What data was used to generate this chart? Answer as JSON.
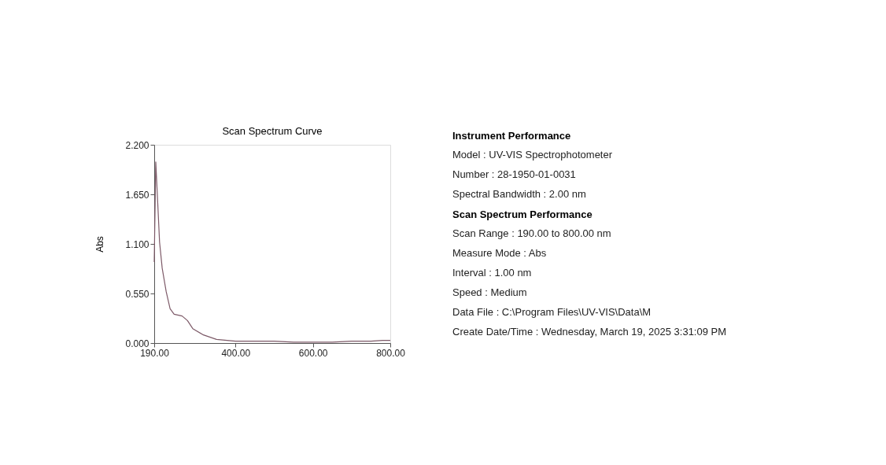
{
  "chart_data": [
    {
      "type": "line",
      "title": "Scan Spectrum Curve",
      "ylabel": "Abs",
      "series": [
        {
          "color": "#7d5a68",
          "x": [
            190,
            194,
            199,
            203.8,
            210.6,
            220.9,
            231,
            241.4,
            262,
            275.8,
            289.6,
            317,
            351,
            400,
            450,
            500,
            550,
            600,
            650,
            700,
            750,
            780,
            800
          ],
          "values": [
            0.9,
            2.01,
            1.56,
            1.12,
            0.83,
            0.57,
            0.38,
            0.32,
            0.3,
            0.25,
            0.16,
            0.09,
            0.04,
            0.02,
            0.02,
            0.02,
            0.01,
            0.01,
            0.01,
            0.02,
            0.02,
            0.03,
            0.03
          ]
        }
      ],
      "xlim": [
        190,
        800
      ],
      "xticks": [
        {
          "value": 190,
          "label": "190.00"
        },
        {
          "value": 400,
          "label": "400.00"
        },
        {
          "value": 600,
          "label": "600.00"
        },
        {
          "value": 800,
          "label": "800.00"
        }
      ],
      "ylim": [
        0,
        2.2
      ],
      "yticks": [
        {
          "value": 0,
          "label": "0.000"
        },
        {
          "value": 0.55,
          "label": "0.550"
        },
        {
          "value": 1.1,
          "label": "1.100"
        },
        {
          "value": 1.65,
          "label": "1.650"
        },
        {
          "value": 2.2,
          "label": "2.200"
        }
      ],
      "grid": false,
      "line_style": "solid",
      "marker": "none"
    },
    {
      "type": "other",
      "title": "Instrument Performance",
      "annotations": [
        "Model : UV-VIS Spectrophotometer",
        "Number : 28-1950-01-0031",
        "Spectral Bandwidth : 2.00 nm"
      ]
    },
    {
      "type": "other",
      "title": "Scan Spectrum Performance",
      "annotations": [
        "Scan Range : 190.00 to 800.00 nm",
        "Measure Mode : Abs",
        "Interval : 1.00 nm",
        "Speed : Medium",
        "Data File : C:\\Program Files\\UV-VIS\\Data\\M",
        "Create Date/Time : Wednesday, March 19, 2025 3:31:09 PM"
      ]
    }
  ]
}
